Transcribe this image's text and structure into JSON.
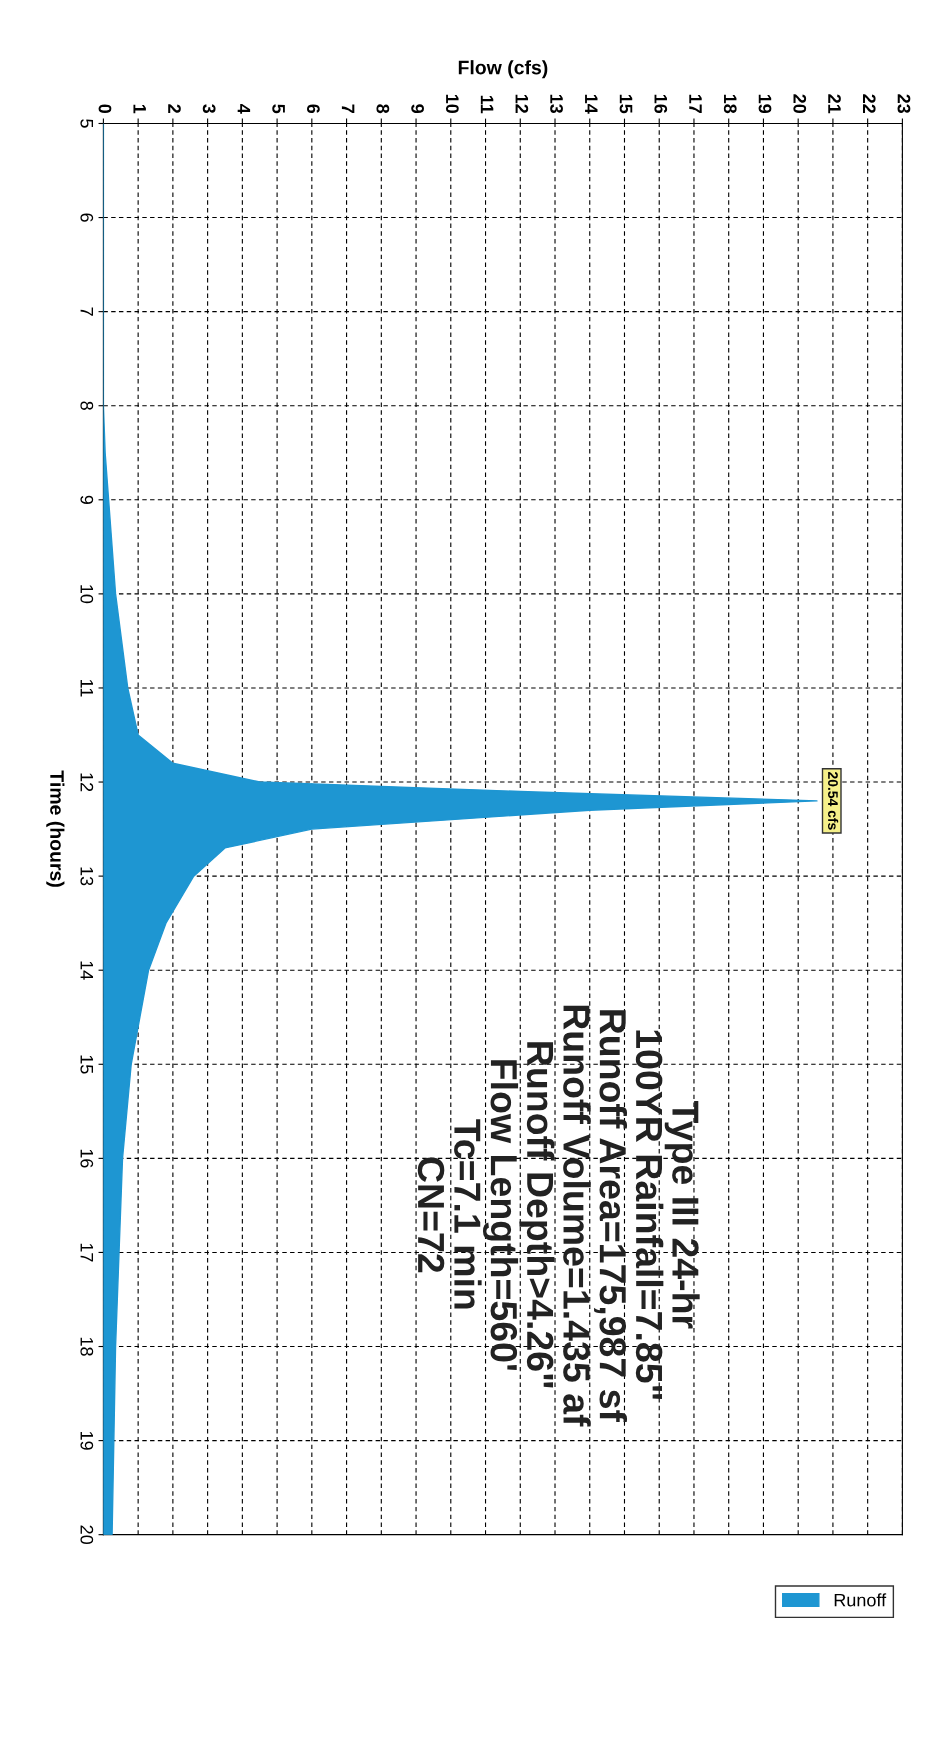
{
  "chart_data": {
    "type": "area",
    "orientation": "horizontal",
    "xlabel": "Flow (cfs)",
    "ylabel": "Time (hours)",
    "x": [
      5,
      6,
      7,
      8,
      8.5,
      9,
      10,
      11,
      11.5,
      11.8,
      12.0,
      12.1,
      12.2,
      12.3,
      12.5,
      12.7,
      13,
      13.5,
      14,
      15,
      16,
      17,
      18,
      19,
      20
    ],
    "series": [
      {
        "name": "Runoff",
        "color": "#1e96d2",
        "values": [
          0,
          0,
          0,
          0,
          0.05,
          0.15,
          0.35,
          0.7,
          1.0,
          2.0,
          4.5,
          12,
          20.54,
          14,
          6,
          3.5,
          2.6,
          1.8,
          1.3,
          0.8,
          0.55,
          0.45,
          0.35,
          0.3,
          0.25
        ]
      }
    ],
    "ylim": [
      20,
      5
    ],
    "yticks": [
      5,
      6,
      7,
      8,
      9,
      10,
      11,
      12,
      13,
      14,
      15,
      16,
      17,
      18,
      19,
      20
    ],
    "xlim": [
      0,
      23
    ],
    "xticks": [
      0,
      1,
      2,
      3,
      4,
      5,
      6,
      7,
      8,
      9,
      10,
      11,
      12,
      13,
      14,
      15,
      16,
      17,
      18,
      19,
      20,
      21,
      22,
      23
    ],
    "annotations": [
      {
        "text": "20.54 cfs",
        "x": 20.54,
        "y": 12.2
      },
      "Type III 24-hr",
      "100YR Rainfall=7.85\"",
      "Runoff Area=175,987 sf",
      "Runoff Volume=1.435 af",
      "Runoff Depth>4.26\"",
      "Flow Length=560'",
      "Tc=7.1 min",
      "CN=72"
    ],
    "grid": true,
    "legend": "bottom right"
  }
}
